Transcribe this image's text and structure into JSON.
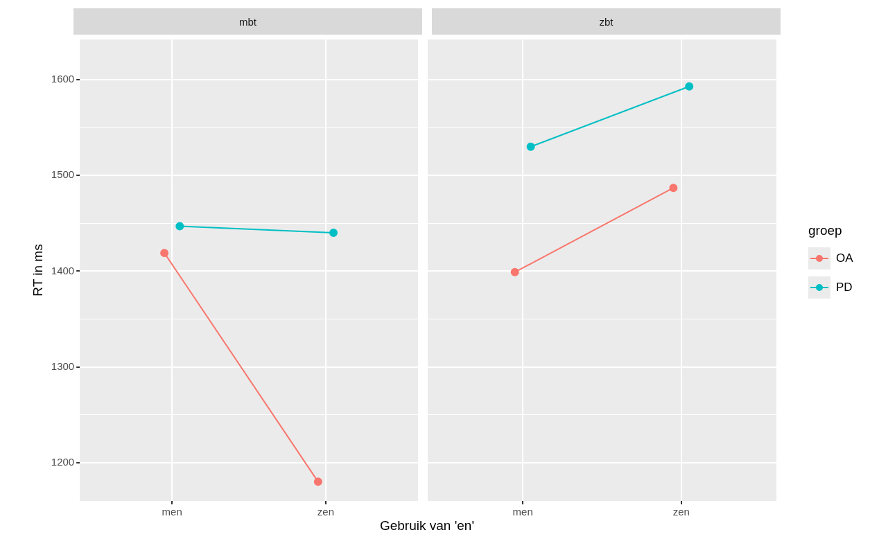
{
  "chart_data": [
    {
      "type": "line",
      "title": "mbt",
      "xlabel": "Gebruik van 'en'",
      "ylabel": "RT in ms",
      "categories": [
        "men",
        "zen"
      ],
      "series": [
        {
          "color": "#f8766d",
          "values": [
            1419,
            1180
          ]
        },
        {
          "color": "#00bfc4",
          "values": [
            1447,
            1440
          ]
        }
      ],
      "ylim": [
        1160,
        1642
      ],
      "yticks": [
        1200,
        {
          "value": 1250,
          "label": null
        },
        1300,
        {
          "value": 1350,
          "label": null
        },
        1400,
        {
          "value": 1450,
          "label": null
        },
        1500,
        {
          "value": 1550,
          "label": null
        },
        1600
      ],
      "grid": true,
      "marker": "circle",
      "line_style": "solid"
    },
    {
      "type": "line",
      "title": "zbt",
      "categories": [
        "men",
        "zen"
      ],
      "series": [
        {
          "name": "OA",
          "color": "#f8766d",
          "values": [
            1399,
            1487
          ]
        },
        {
          "name": "PD",
          "color": "#00bfc4",
          "values": [
            1530,
            1593
          ]
        }
      ],
      "ylim": [
        1160,
        1642
      ],
      "yticks": [
        1200,
        {
          "value": 1250,
          "label": null
        },
        1300,
        {
          "value": 1350,
          "label": null
        },
        1400,
        {
          "value": 1450,
          "label": null
        },
        1500,
        {
          "value": 1550,
          "label": null
        },
        1600
      ],
      "tick_labels": "x",
      "grid": true,
      "marker": "circle",
      "line_style": "solid",
      "legend": "right",
      "legend_title": "groep"
    }
  ]
}
